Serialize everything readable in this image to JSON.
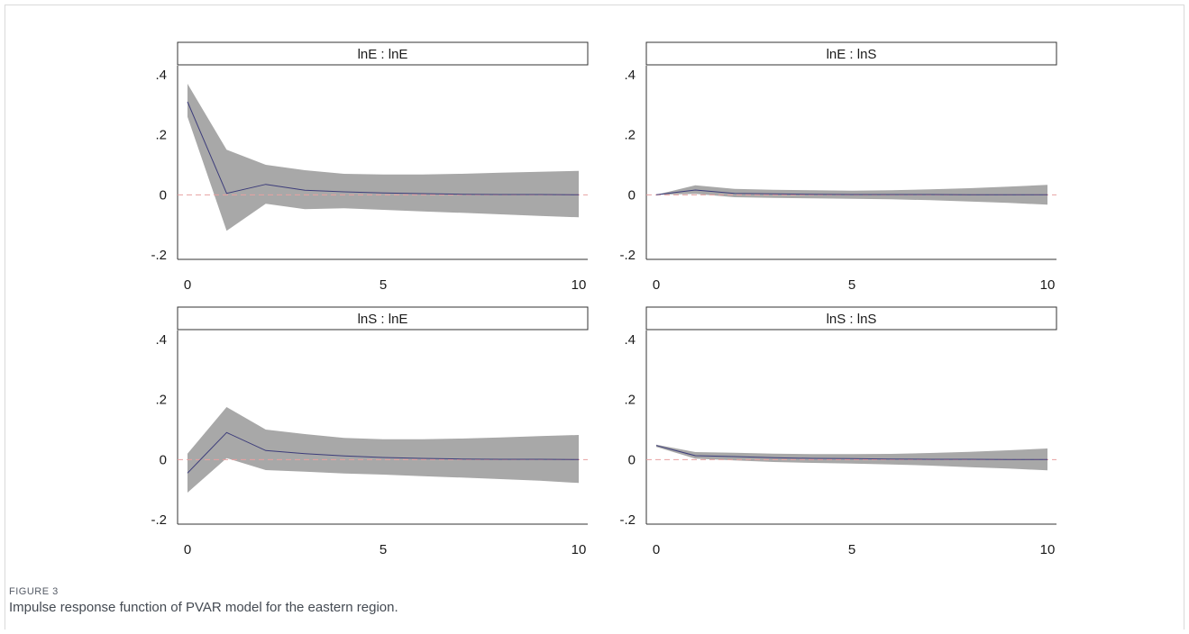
{
  "figure": {
    "label": "FIGURE 3",
    "caption": "Impulse response function of PVAR model for the eastern region."
  },
  "colors": {
    "band": "#a8a8a8",
    "line": "#3c3c7a",
    "zero_line": "#e8a0a0",
    "title_box_border": "#333333"
  },
  "chart_data": [
    {
      "type": "line",
      "title": "lnE : lnE",
      "x": [
        0,
        1,
        2,
        3,
        4,
        5,
        6,
        7,
        8,
        9,
        10
      ],
      "xticks": [
        "0",
        "5",
        "10"
      ],
      "yticks": [
        ".4",
        ".2",
        "0",
        "-.2"
      ],
      "ylim": [
        -0.2,
        0.4
      ],
      "xlim": [
        0,
        10
      ],
      "reference_line": 0,
      "series": [
        {
          "values": [
            0.31,
            0.005,
            0.035,
            0.015,
            0.01,
            0.006,
            0.004,
            0.002,
            0.001,
            0.001,
            0.0
          ]
        },
        {
          "role": "upper",
          "values": [
            0.37,
            0.15,
            0.1,
            0.082,
            0.07,
            0.068,
            0.068,
            0.07,
            0.074,
            0.077,
            0.08
          ]
        },
        {
          "role": "lower",
          "values": [
            0.26,
            -0.12,
            -0.03,
            -0.048,
            -0.045,
            -0.05,
            -0.055,
            -0.06,
            -0.065,
            -0.07,
            -0.075
          ]
        }
      ]
    },
    {
      "type": "line",
      "title": "lnE : lnS",
      "x": [
        0,
        1,
        2,
        3,
        4,
        5,
        6,
        7,
        8,
        9,
        10
      ],
      "xticks": [
        "0",
        "5",
        "10"
      ],
      "yticks": [
        ".4",
        ".2",
        "0",
        "-.2"
      ],
      "ylim": [
        -0.2,
        0.4
      ],
      "xlim": [
        0,
        10
      ],
      "reference_line": 0,
      "series": [
        {
          "values": [
            0.0,
            0.016,
            0.005,
            0.003,
            0.002,
            0.001,
            0.001,
            0.001,
            0.0,
            0.0,
            0.0
          ]
        },
        {
          "role": "upper",
          "values": [
            0.0,
            0.032,
            0.02,
            0.017,
            0.015,
            0.014,
            0.015,
            0.018,
            0.022,
            0.027,
            0.033
          ]
        },
        {
          "role": "lower",
          "values": [
            0.0,
            0.003,
            -0.008,
            -0.01,
            -0.012,
            -0.013,
            -0.015,
            -0.018,
            -0.022,
            -0.027,
            -0.033
          ]
        }
      ]
    },
    {
      "type": "line",
      "title": "lnS : lnE",
      "x": [
        0,
        1,
        2,
        3,
        4,
        5,
        6,
        7,
        8,
        9,
        10
      ],
      "xticks": [
        "0",
        "5",
        "10"
      ],
      "yticks": [
        ".4",
        ".2",
        "0",
        "-.2"
      ],
      "ylim": [
        -0.2,
        0.4
      ],
      "xlim": [
        0,
        10
      ],
      "reference_line": 0,
      "series": [
        {
          "values": [
            -0.045,
            0.09,
            0.03,
            0.02,
            0.012,
            0.007,
            0.004,
            0.002,
            0.001,
            0.001,
            0.0
          ]
        },
        {
          "role": "upper",
          "values": [
            0.02,
            0.175,
            0.1,
            0.085,
            0.072,
            0.068,
            0.068,
            0.07,
            0.074,
            0.078,
            0.082
          ]
        },
        {
          "role": "lower",
          "values": [
            -0.11,
            0.005,
            -0.035,
            -0.04,
            -0.046,
            -0.05,
            -0.055,
            -0.06,
            -0.065,
            -0.07,
            -0.078
          ]
        }
      ]
    },
    {
      "type": "line",
      "title": "lnS : lnS",
      "x": [
        0,
        1,
        2,
        3,
        4,
        5,
        6,
        7,
        8,
        9,
        10
      ],
      "xticks": [
        "0",
        "5",
        "10"
      ],
      "yticks": [
        ".4",
        ".2",
        "0",
        "-.2"
      ],
      "ylim": [
        -0.2,
        0.4
      ],
      "xlim": [
        0,
        10
      ],
      "reference_line": 0,
      "series": [
        {
          "values": [
            0.047,
            0.013,
            0.01,
            0.006,
            0.004,
            0.003,
            0.002,
            0.001,
            0.001,
            0.0,
            0.0
          ]
        },
        {
          "role": "upper",
          "values": [
            0.05,
            0.025,
            0.023,
            0.02,
            0.018,
            0.018,
            0.019,
            0.022,
            0.026,
            0.031,
            0.037
          ]
        },
        {
          "role": "lower",
          "values": [
            0.042,
            0.003,
            -0.003,
            -0.008,
            -0.011,
            -0.013,
            -0.016,
            -0.02,
            -0.025,
            -0.03,
            -0.036
          ]
        }
      ]
    }
  ]
}
